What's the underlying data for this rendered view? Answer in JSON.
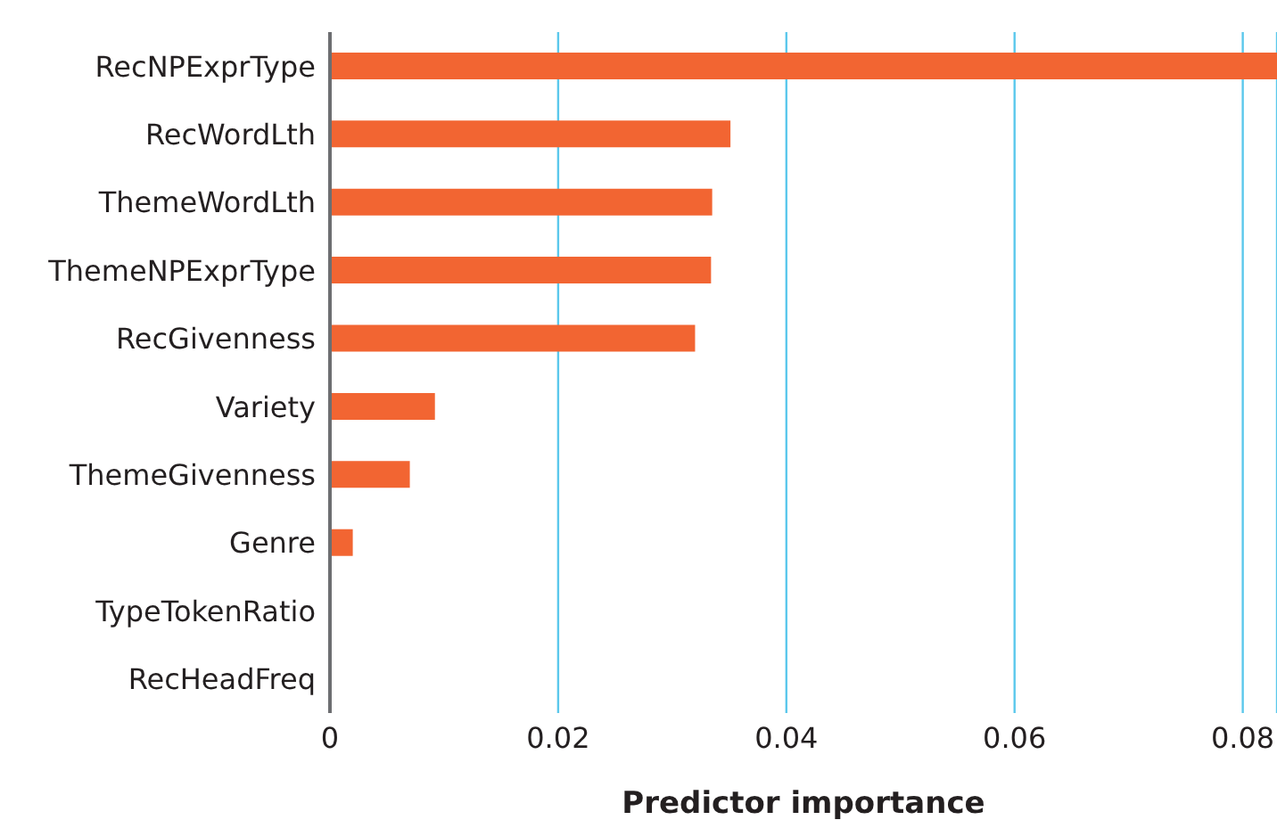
{
  "chart_data": {
    "type": "bar",
    "orientation": "horizontal",
    "xlabel": "Predictor importance",
    "categories": [
      "RecNPExprType",
      "RecWordLth",
      "ThemeWordLth",
      "ThemeNPExprType",
      "RecGivenness",
      "Variety",
      "ThemeGivenness",
      "Genre",
      "TypeTokenRatio",
      "RecHeadFreq"
    ],
    "values": [
      0.083,
      0.0351,
      0.0335,
      0.0334,
      0.032,
      0.0092,
      0.007,
      0.002,
      0,
      0
    ],
    "color": "#f26532",
    "xlim": [
      0,
      0.083
    ],
    "xticks": [
      {
        "value": 0,
        "label": "0"
      },
      0.02,
      0.04,
      0.06,
      0.08
    ],
    "grid": "x",
    "legend": false
  }
}
